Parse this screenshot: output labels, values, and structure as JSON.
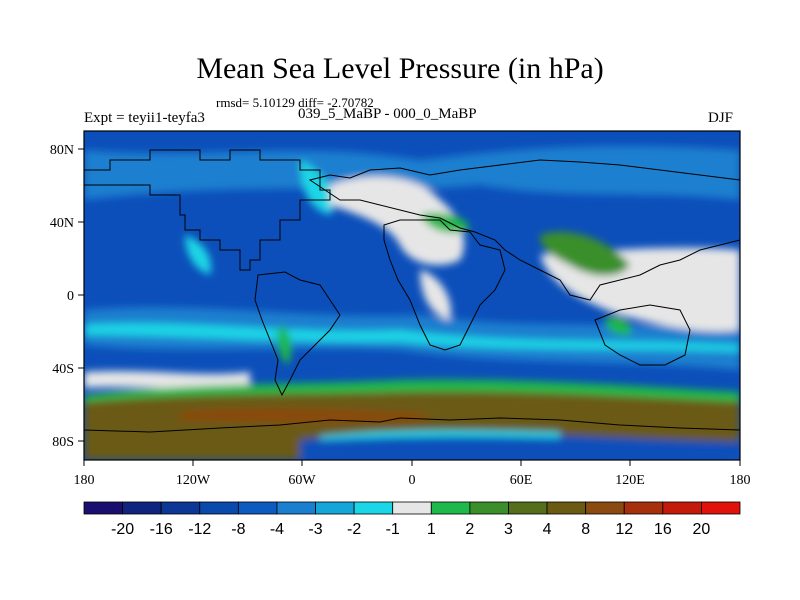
{
  "figure": {
    "title": "Mean Sea Level Pressure (in hPa)",
    "stats": "rmsd= 5.10129 diff= -2.70782",
    "left_label": "Expt = teyii1-teyfa3",
    "center_label": "039_5_MaBP - 000_0_MaBP",
    "right_label": "DJF"
  },
  "axes": {
    "lon_ticks": [
      "180",
      "120W",
      "60W",
      "0",
      "60E",
      "120E",
      "180"
    ],
    "lat_ticks": [
      "80N",
      "40N",
      "0",
      "40S",
      "80S"
    ]
  },
  "colorbar": {
    "labels": [
      "-20",
      "-16",
      "-12",
      "-8",
      "-4",
      "-3",
      "-2",
      "-1",
      "1",
      "2",
      "3",
      "4",
      "8",
      "12",
      "16",
      "20"
    ],
    "colors": [
      "#1a0f6e",
      "#10237f",
      "#0c3796",
      "#0a4aad",
      "#0d5bc0",
      "#1a7fcf",
      "#12a6d9",
      "#1ad6e6",
      "#e6e6e6",
      "#1fb84a",
      "#3a8f2a",
      "#556e1c",
      "#6b5a12",
      "#8a4a10",
      "#a82f0c",
      "#c41a0a",
      "#e0120a"
    ]
  },
  "palette": {
    "ocean_deep": "#0a3aa6",
    "ocean": "#0c4fba",
    "mid": "#1a7fcf",
    "cyan": "#1ad6e6",
    "neutral": "#e6e6e6",
    "green": "#1fb84a",
    "olive": "#3a8f2a",
    "brown": "#6b5a12",
    "brown_red": "#8a4a10"
  }
}
